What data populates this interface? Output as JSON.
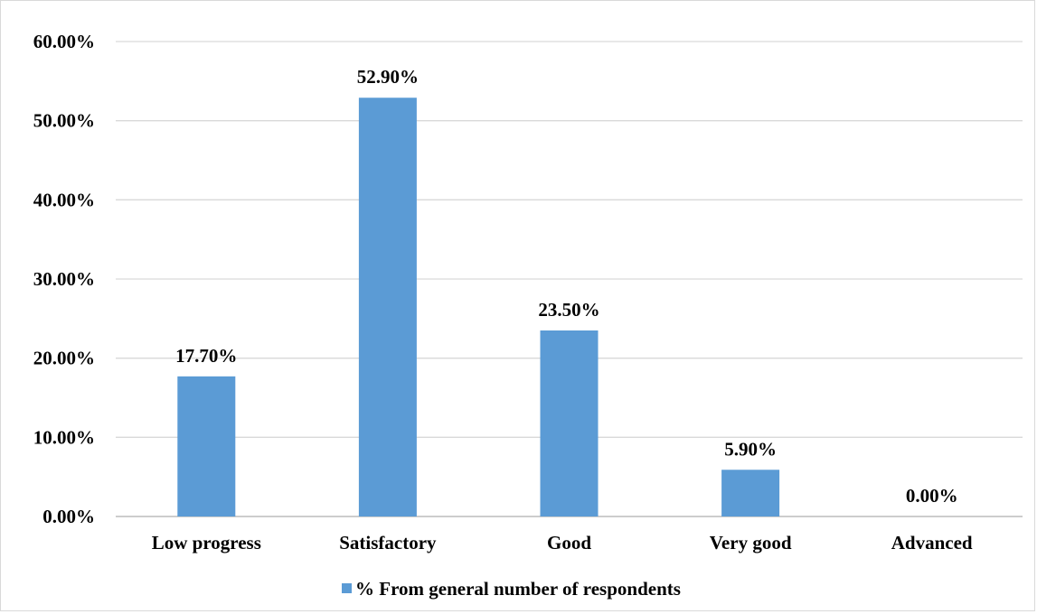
{
  "chart_data": {
    "type": "bar",
    "categories": [
      "Low progress",
      "Satisfactory",
      "Good",
      "Very good",
      "Advanced"
    ],
    "series": [
      {
        "name": "% From general number of respondents",
        "values": [
          17.7,
          52.9,
          23.5,
          5.9,
          0.0
        ],
        "data_labels": [
          "17.70%",
          "52.90%",
          "23.50%",
          "5.90%",
          "0.00%"
        ]
      }
    ],
    "ylim": [
      0,
      60
    ],
    "yticks": [
      0,
      10,
      20,
      30,
      40,
      50,
      60
    ],
    "ytick_labels": [
      "0.00%",
      "10.00%",
      "20.00%",
      "30.00%",
      "40.00%",
      "50.00%",
      "60.00%"
    ],
    "grid": true,
    "legend": "bottom-center",
    "bar_color": "#5b9bd5",
    "grid_color": "#d9d9d9"
  }
}
